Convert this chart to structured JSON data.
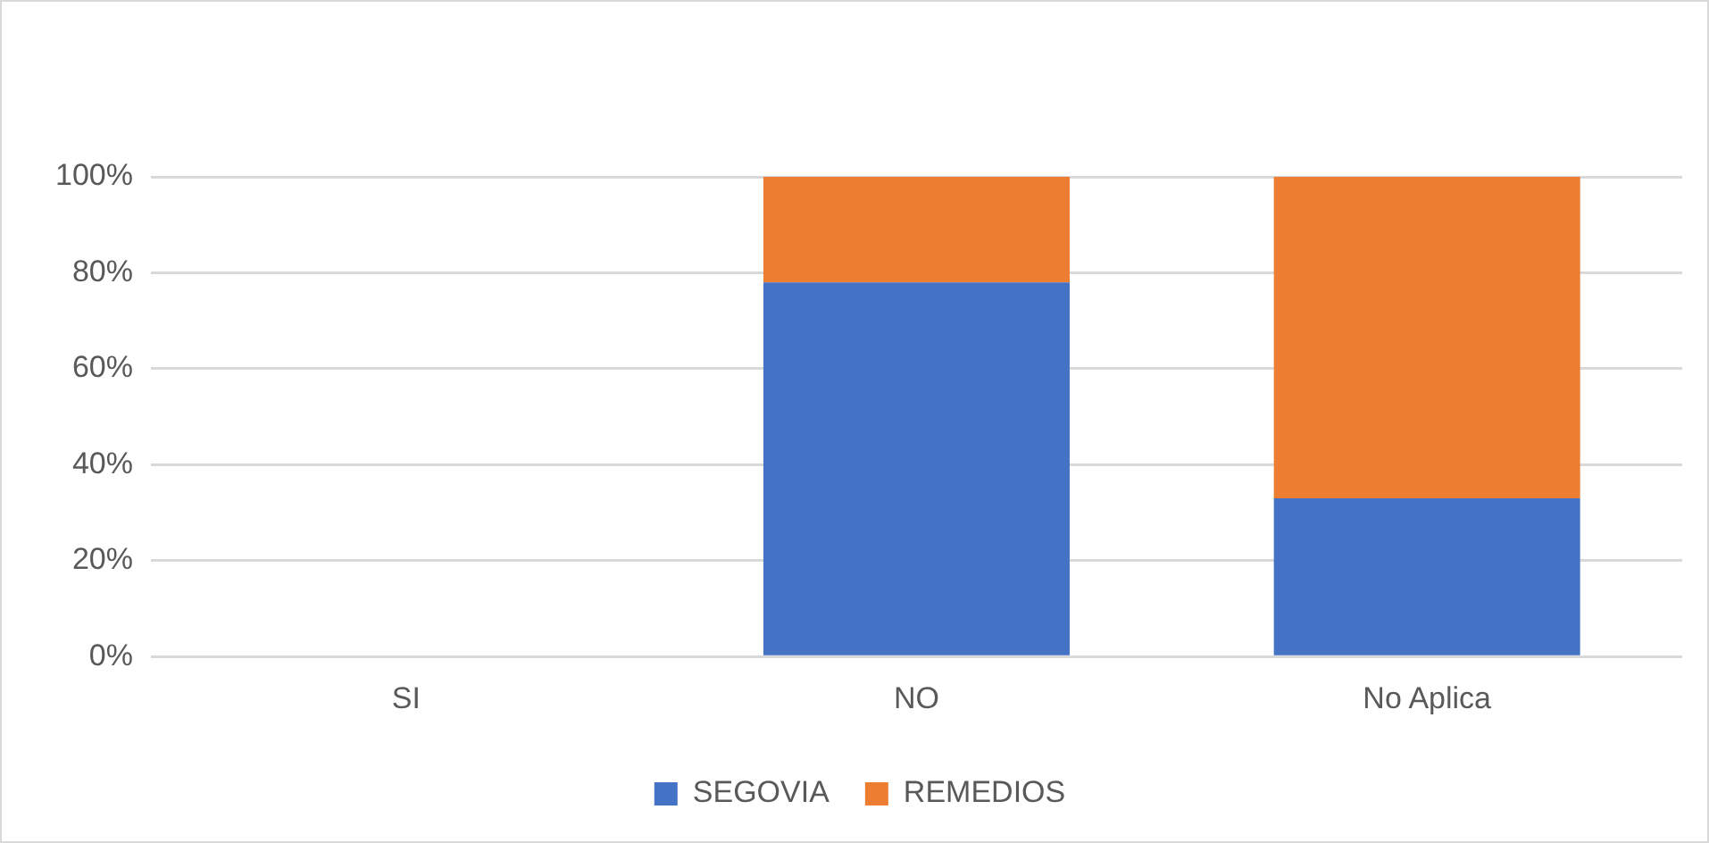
{
  "chart_data": {
    "type": "bar",
    "stacked": true,
    "categories": [
      "SI",
      "NO",
      "No Aplica"
    ],
    "series": [
      {
        "name": "SEGOVIA",
        "color": "#4472c4",
        "values": [
          0,
          78,
          33
        ]
      },
      {
        "name": "REMEDIOS",
        "color": "#ed7d31",
        "values": [
          0,
          22,
          67
        ]
      }
    ],
    "ylim": [
      0,
      100
    ],
    "yticks": [
      {
        "value": 0,
        "label": "0%"
      },
      {
        "value": 20,
        "label": "20%"
      },
      {
        "value": 40,
        "label": "40%"
      },
      {
        "value": 60,
        "label": "60%"
      },
      {
        "value": 80,
        "label": "80%"
      },
      {
        "value": 100,
        "label": "100%"
      }
    ],
    "grid": "y",
    "legend": "bottom"
  }
}
